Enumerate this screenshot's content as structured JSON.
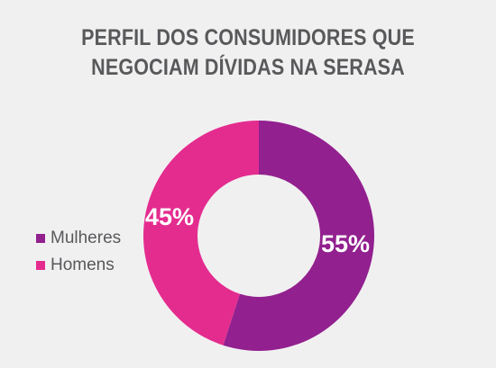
{
  "title": {
    "line1": "PERFIL DOS CONSUMIDORES QUE",
    "line2": "NEGOCIAM DÍVIDAS NA SERASA"
  },
  "chart_data": {
    "type": "pie",
    "donut": true,
    "legend_position": "left",
    "series": [
      {
        "name": "Mulheres",
        "value": 55,
        "label": "55%",
        "color": "#92208f"
      },
      {
        "name": "Homens",
        "value": 45,
        "label": "45%",
        "color": "#e42c8f"
      }
    ]
  }
}
